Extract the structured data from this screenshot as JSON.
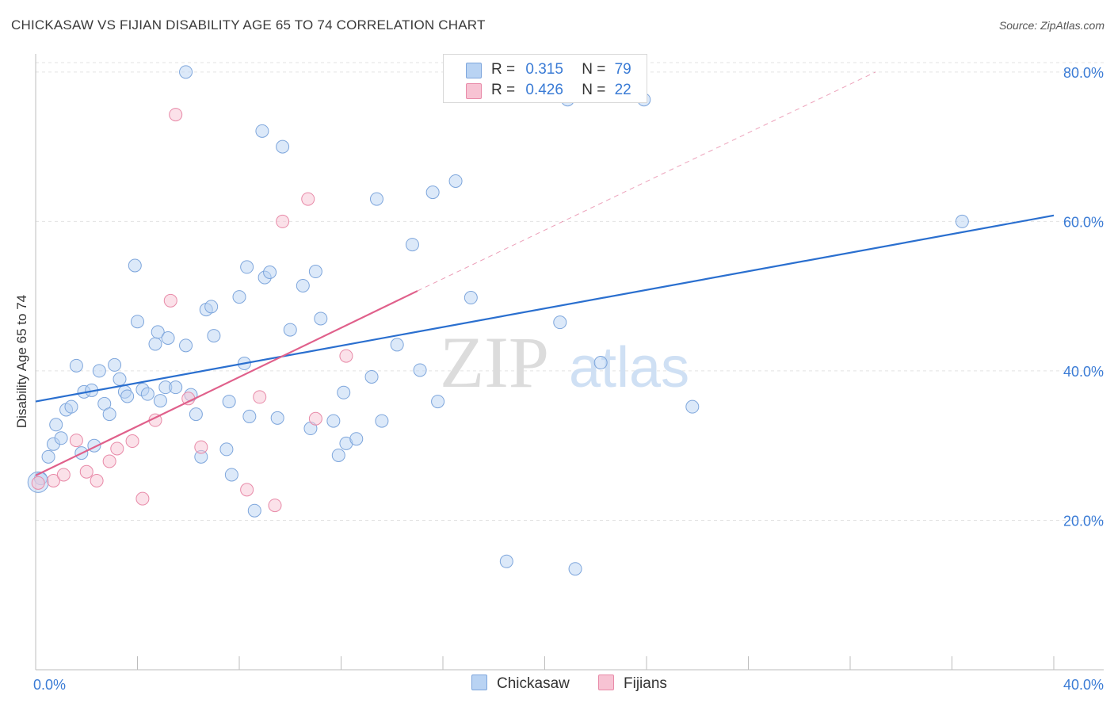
{
  "title": "CHICKASAW VS FIJIAN DISABILITY AGE 65 TO 74 CORRELATION CHART",
  "source": "Source: ZipAtlas.com",
  "watermark": {
    "zip": "ZIP",
    "atlas": "atlas"
  },
  "colors": {
    "chickasaw_fill": "#b9d3f3",
    "chickasaw_stroke": "#7ea6dc",
    "chickasaw_line": "#2a6fcf",
    "fijians_fill": "#f7c3d3",
    "fijians_stroke": "#e88aa8",
    "fijians_line": "#e0608b",
    "axis_label": "#3a7bd5"
  },
  "legend": {
    "r_label": "R =",
    "n_label": "N =",
    "chickasaw": {
      "r": "0.315",
      "n": "79"
    },
    "fijians": {
      "r": "0.426",
      "n": "22"
    }
  },
  "chart_data": {
    "type": "scatter",
    "title": "CHICKASAW VS FIJIAN DISABILITY AGE 65 TO 74 CORRELATION CHART",
    "xlabel": "",
    "ylabel": "Disability Age 65 to 74",
    "xlim": [
      0,
      40
    ],
    "ylim": [
      0,
      82
    ],
    "x_tick_labels": [
      "0.0%",
      "40.0%"
    ],
    "y_ticks": [
      20,
      40,
      60,
      80
    ],
    "y_tick_labels": [
      "20.0%",
      "40.0%",
      "60.0%",
      "80.0%"
    ],
    "grid": true,
    "legend_position": "bottom",
    "series": [
      {
        "name": "Chickasaw",
        "r": 0.315,
        "n": 79,
        "points": [
          [
            0.2,
            25.6
          ],
          [
            0.5,
            28.5
          ],
          [
            0.7,
            30.2
          ],
          [
            0.8,
            32.8
          ],
          [
            1.0,
            31.0
          ],
          [
            1.2,
            34.8
          ],
          [
            1.4,
            35.2
          ],
          [
            1.6,
            40.7
          ],
          [
            1.8,
            29.0
          ],
          [
            1.9,
            37.2
          ],
          [
            2.2,
            37.4
          ],
          [
            2.3,
            30.0
          ],
          [
            2.5,
            40.0
          ],
          [
            2.7,
            35.6
          ],
          [
            2.9,
            34.2
          ],
          [
            3.1,
            40.8
          ],
          [
            3.3,
            38.9
          ],
          [
            3.5,
            37.2
          ],
          [
            3.6,
            36.6
          ],
          [
            3.9,
            54.1
          ],
          [
            4.0,
            46.6
          ],
          [
            4.2,
            37.5
          ],
          [
            4.4,
            36.9
          ],
          [
            4.7,
            43.6
          ],
          [
            4.8,
            45.2
          ],
          [
            4.9,
            36.0
          ],
          [
            5.1,
            37.8
          ],
          [
            5.2,
            44.4
          ],
          [
            5.5,
            37.8
          ],
          [
            5.9,
            43.4
          ],
          [
            6.1,
            36.8
          ],
          [
            6.3,
            34.2
          ],
          [
            6.5,
            28.5
          ],
          [
            6.7,
            48.2
          ],
          [
            6.9,
            48.6
          ],
          [
            7.0,
            44.7
          ],
          [
            7.5,
            29.5
          ],
          [
            7.6,
            35.9
          ],
          [
            7.7,
            26.1
          ],
          [
            8.0,
            49.9
          ],
          [
            8.2,
            41.0
          ],
          [
            8.3,
            53.9
          ],
          [
            8.4,
            33.9
          ],
          [
            8.6,
            21.3
          ],
          [
            8.9,
            72.1
          ],
          [
            9.0,
            52.5
          ],
          [
            9.2,
            53.2
          ],
          [
            9.5,
            33.7
          ],
          [
            9.7,
            70.0
          ],
          [
            10.0,
            45.5
          ],
          [
            10.5,
            51.4
          ],
          [
            10.8,
            32.3
          ],
          [
            11.0,
            53.3
          ],
          [
            11.2,
            47.0
          ],
          [
            11.7,
            33.3
          ],
          [
            11.9,
            28.7
          ],
          [
            12.1,
            37.1
          ],
          [
            12.2,
            30.3
          ],
          [
            12.6,
            30.9
          ],
          [
            13.2,
            39.2
          ],
          [
            13.4,
            63.0
          ],
          [
            13.6,
            33.3
          ],
          [
            14.2,
            43.5
          ],
          [
            14.8,
            56.9
          ],
          [
            15.1,
            40.1
          ],
          [
            15.6,
            63.9
          ],
          [
            15.8,
            35.9
          ],
          [
            16.5,
            65.4
          ],
          [
            17.1,
            49.8
          ],
          [
            18.5,
            14.5
          ],
          [
            20.6,
            46.5
          ],
          [
            20.9,
            76.3
          ],
          [
            21.2,
            13.5
          ],
          [
            22.2,
            41.1
          ],
          [
            23.9,
            76.3
          ],
          [
            25.8,
            35.2
          ],
          [
            36.4,
            60.0
          ],
          [
            5.9,
            80.0
          ],
          [
            0.1,
            25.1
          ]
        ]
      },
      {
        "name": "Fijians",
        "r": 0.426,
        "n": 22,
        "points": [
          [
            0.1,
            25.0
          ],
          [
            0.7,
            25.3
          ],
          [
            1.1,
            26.1
          ],
          [
            1.6,
            30.7
          ],
          [
            2.0,
            26.5
          ],
          [
            2.4,
            25.3
          ],
          [
            2.9,
            27.9
          ],
          [
            3.2,
            29.6
          ],
          [
            3.8,
            30.6
          ],
          [
            4.2,
            22.9
          ],
          [
            4.7,
            33.4
          ],
          [
            5.3,
            49.4
          ],
          [
            5.5,
            74.3
          ],
          [
            6.0,
            36.3
          ],
          [
            6.5,
            29.8
          ],
          [
            8.3,
            24.1
          ],
          [
            8.8,
            36.5
          ],
          [
            9.4,
            22.0
          ],
          [
            9.7,
            60.0
          ],
          [
            10.7,
            63.0
          ],
          [
            11.0,
            33.6
          ],
          [
            12.2,
            42.0
          ]
        ]
      }
    ],
    "trend_lines": [
      {
        "series": "Chickasaw",
        "x": [
          0,
          40
        ],
        "y": [
          35.9,
          60.8
        ]
      },
      {
        "series": "Fijians",
        "x": [
          0,
          15
        ],
        "y": [
          26.0,
          50.7
        ]
      },
      {
        "series": "Fijians (extrapolated)",
        "x": [
          15,
          33
        ],
        "y": [
          50.7,
          80.0
        ]
      }
    ]
  }
}
